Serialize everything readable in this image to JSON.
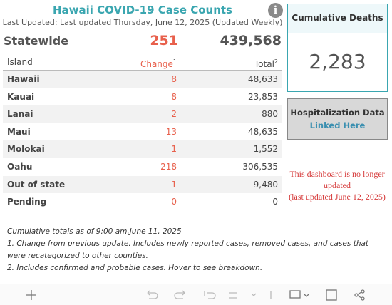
{
  "header": {
    "title": "Hawaii COVID-19 Case Counts",
    "subtitle": "Last Updated: Last updated Thursday, June 12, 2025 (Updated Weekly)"
  },
  "statewide": {
    "label": "Statewide",
    "change": "251",
    "total": "439,568"
  },
  "table": {
    "columns": [
      {
        "label": "Island"
      },
      {
        "label": "Change",
        "note": "1"
      },
      {
        "label": "Total",
        "note": "2"
      }
    ],
    "rows": [
      [
        "Hawaii",
        "8",
        "48,633"
      ],
      [
        "Kauai",
        "8",
        "23,853"
      ],
      [
        "Lanai",
        "2",
        "880"
      ],
      [
        "Maui",
        "13",
        "48,635"
      ],
      [
        "Molokai",
        "1",
        "1,552"
      ],
      [
        "Oahu",
        "218",
        "306,535"
      ],
      [
        "Out of state",
        "1",
        "9,480"
      ],
      [
        "Pending",
        "0",
        "0"
      ]
    ]
  },
  "deaths": {
    "label": "Cumulative Deaths",
    "value": "2,283"
  },
  "hospitalization": {
    "title": "Hospitalization Data",
    "link": "Linked Here"
  },
  "notice": {
    "lines": [
      "This dashboard is no longer updated",
      "(last updated June 12, 2025)"
    ]
  },
  "footnotes": [
    "Cumulative totals as of 9:00 am,June 11, 2025",
    "1. Change from previous update. Includes newly reported cases, removed cases, and cases that were recategorized to other counties.",
    "2. Includes confirmed and probable cases. Hover to see breakdown."
  ]
}
